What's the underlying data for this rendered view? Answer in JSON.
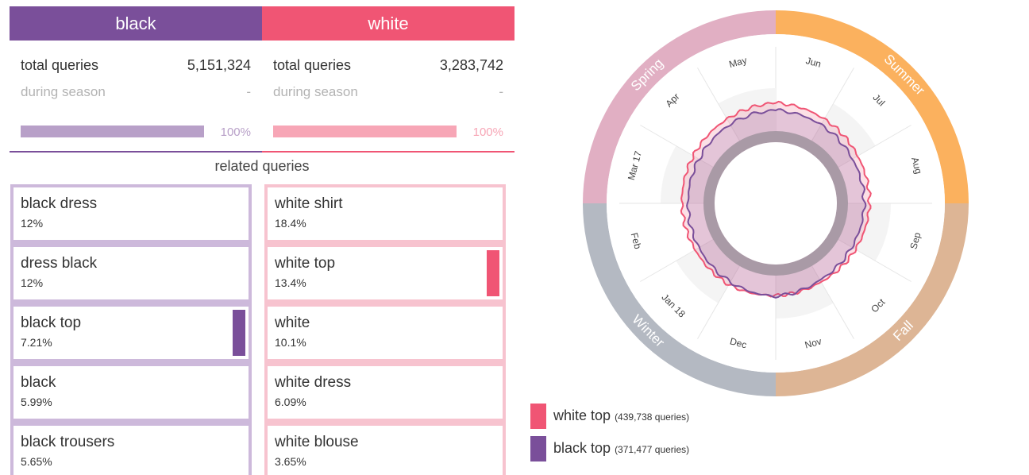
{
  "colors": {
    "black": "#7a4f9a",
    "white": "#f05574",
    "black_light": "#b8a0c8",
    "white_light": "#f7a6b6"
  },
  "black": {
    "name": "black",
    "total_label": "total queries",
    "total_value": "5,151,324",
    "season_label": "during season",
    "season_value": "-",
    "bar_percent": "100%",
    "bar_fill": 1.0
  },
  "white": {
    "name": "white",
    "total_label": "total queries",
    "total_value": "3,283,742",
    "season_label": "during season",
    "season_value": "-",
    "bar_percent": "100%",
    "bar_fill": 1.0
  },
  "related_title": "related queries",
  "related_black": [
    {
      "query": "black dress",
      "pct": "12%",
      "highlight": false
    },
    {
      "query": "dress black",
      "pct": "12%",
      "highlight": false
    },
    {
      "query": "black top",
      "pct": "7.21%",
      "highlight": true
    },
    {
      "query": "black",
      "pct": "5.99%",
      "highlight": false
    },
    {
      "query": "black trousers",
      "pct": "5.65%",
      "highlight": false
    }
  ],
  "related_white": [
    {
      "query": "white shirt",
      "pct": "18.4%",
      "highlight": false
    },
    {
      "query": "white top",
      "pct": "13.4%",
      "highlight": true
    },
    {
      "query": "white",
      "pct": "10.1%",
      "highlight": false
    },
    {
      "query": "white dress",
      "pct": "6.09%",
      "highlight": false
    },
    {
      "query": "white blouse",
      "pct": "3.65%",
      "highlight": false
    }
  ],
  "chart_data": {
    "type": "radial-line",
    "months": [
      "Jun",
      "Jul",
      "Aug",
      "Sep",
      "Oct",
      "Nov",
      "Dec",
      "Jan 18",
      "Feb",
      "Mar 17",
      "Apr",
      "May"
    ],
    "seasons": [
      {
        "name": "Summer",
        "color": "#fbb15e"
      },
      {
        "name": "Fall",
        "color": "#ddb595"
      },
      {
        "name": "Winter",
        "color": "#b4b9c2"
      },
      {
        "name": "Spring",
        "color": "#e1afc3"
      }
    ],
    "series": [
      {
        "name": "white top",
        "count_label": "(439,738 queries)",
        "color": "#f05574",
        "values": [
          0.57,
          0.5,
          0.44,
          0.42,
          0.38,
          0.35,
          0.38,
          0.42,
          0.4,
          0.42,
          0.45,
          0.5
        ]
      },
      {
        "name": "black top",
        "count_label": "(371,477 queries)",
        "color": "#7a4f9a",
        "values": [
          0.4,
          0.35,
          0.3,
          0.3,
          0.28,
          0.3,
          0.4,
          0.35,
          0.3,
          0.28,
          0.3,
          0.36
        ]
      }
    ]
  }
}
